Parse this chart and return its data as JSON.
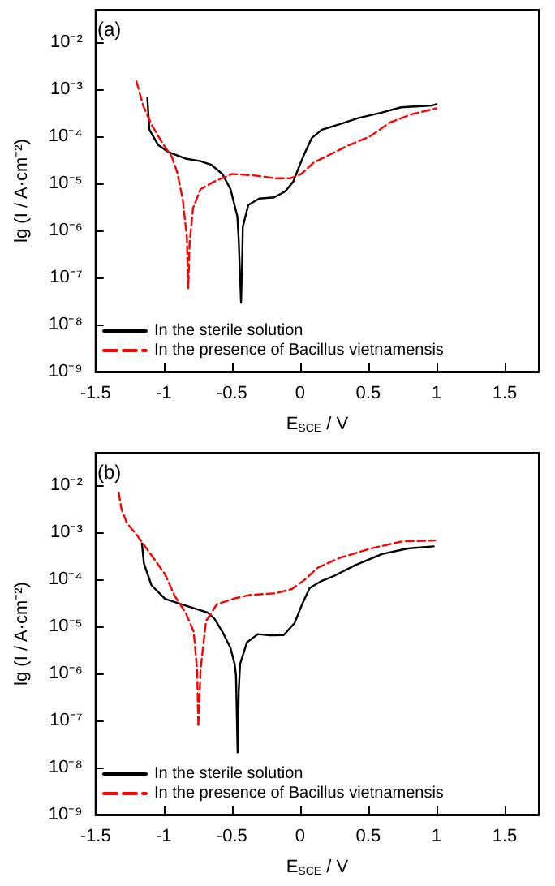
{
  "chart_data": [
    {
      "type": "line",
      "annotations": [
        "(a)"
      ],
      "xlabel": "E$_{SCE}$ / V",
      "ylabel": "lg (I / A·cm⁻²)",
      "xlim": [
        -1.5,
        1.75
      ],
      "xticks": [
        -1.5,
        -1.0,
        -0.5,
        0.0,
        0.5,
        1.0,
        1.5
      ],
      "ylim": [
        1e-09,
        0.05
      ],
      "yticks": [
        {
          "value": 1e-09,
          "label": "10⁻⁹"
        },
        {
          "value": 1e-08,
          "label": "10⁻⁸"
        },
        {
          "value": 1e-07,
          "label": "10⁻⁷"
        },
        {
          "value": 1e-06,
          "label": "10⁻⁶"
        },
        {
          "value": 1e-05,
          "label": "10⁻⁵"
        },
        {
          "value": 0.0001,
          "label": "10⁻⁴"
        },
        {
          "value": 0.001,
          "label": "10⁻³"
        },
        {
          "value": 0.01,
          "label": "10⁻²"
        }
      ],
      "log": "y",
      "grid": false,
      "legend": "bottom left",
      "series": [
        {
          "name": "In the sterile solution",
          "color": "#000000",
          "line_style": "solid",
          "x": [
            -1.12,
            -1.105,
            -1.04,
            -0.96,
            -0.84,
            -0.73,
            -0.65,
            -0.57,
            -0.51,
            -0.46,
            -0.45,
            -0.433,
            -0.425,
            -0.42,
            -0.38,
            -0.3,
            -0.19,
            -0.11,
            -0.05,
            -0.01,
            0.03,
            0.085,
            0.16,
            0.28,
            0.43,
            0.59,
            0.74,
            0.97,
            1.0
          ],
          "values": [
            0.00066,
            0.00014,
            6.6e-05,
            4.6e-05,
            3.4e-05,
            3e-05,
            2.5e-05,
            1.6e-05,
            7.6e-06,
            2e-06,
            6.3e-07,
            2.9e-08,
            2e-07,
            1.2e-06,
            3.5e-06,
            4.8e-06,
            5.1e-06,
            6.8e-06,
            1.1e-05,
            2.2e-05,
            4.2e-05,
            9.3e-05,
            0.00014,
            0.00018,
            0.00025,
            0.00032,
            0.00042,
            0.00046,
            0.00049
          ]
        },
        {
          "name": "In the presence of Bacillus vietnamensis",
          "color": "#ff0000",
          "line_style": "dashed",
          "x": [
            -1.2,
            -1.15,
            -1.09,
            -1.0,
            -0.94,
            -0.9,
            -0.86,
            -0.83,
            -0.82,
            -0.81,
            -0.785,
            -0.73,
            -0.63,
            -0.5,
            -0.34,
            -0.19,
            -0.07,
            0.01,
            0.1,
            0.2,
            0.36,
            0.51,
            0.66,
            0.82,
            1.0
          ],
          "values": [
            0.0015,
            0.00045,
            0.00018,
            6.6e-05,
            3.7e-05,
            1.7e-05,
            4.5e-06,
            7.1e-07,
            5.9e-08,
            5.4e-07,
            3e-06,
            7.6e-06,
            1.1e-05,
            1.6e-05,
            1.5e-05,
            1.3e-05,
            1.3e-05,
            1.6e-05,
            2.8e-05,
            3.9e-05,
            6.6e-05,
            0.0001,
            0.0002,
            0.0003,
            0.0004
          ]
        }
      ]
    },
    {
      "type": "line",
      "annotations": [
        "(b)"
      ],
      "xlabel": "E$_{SCE}$ / V",
      "ylabel": "lg (I / A·cm⁻²)",
      "xlim": [
        -1.5,
        1.75
      ],
      "xticks": [
        -1.5,
        -1.0,
        -0.5,
        0.0,
        0.5,
        1.0,
        1.5
      ],
      "ylim": [
        1e-09,
        0.05
      ],
      "yticks": [
        {
          "value": 1e-09,
          "label": "10⁻⁹"
        },
        {
          "value": 1e-08,
          "label": "10⁻⁸"
        },
        {
          "value": 1e-07,
          "label": "10⁻⁷"
        },
        {
          "value": 1e-06,
          "label": "10⁻⁶"
        },
        {
          "value": 1e-05,
          "label": "10⁻⁵"
        },
        {
          "value": 0.0001,
          "label": "10⁻⁴"
        },
        {
          "value": 0.001,
          "label": "10⁻³"
        },
        {
          "value": 0.01,
          "label": "10⁻²"
        }
      ],
      "log": "y",
      "grid": false,
      "legend": "bottom left",
      "series": [
        {
          "name": "In the sterile solution",
          "color": "#000000",
          "line_style": "solid",
          "x": [
            -1.16,
            -1.145,
            -1.09,
            -0.99,
            -0.84,
            -0.68,
            -0.63,
            -0.57,
            -0.51,
            -0.48,
            -0.47,
            -0.458,
            -0.45,
            -0.44,
            -0.39,
            -0.31,
            -0.22,
            -0.12,
            -0.04,
            0.015,
            0.07,
            0.15,
            0.25,
            0.4,
            0.6,
            0.79,
            0.98
          ],
          "values": [
            0.00059,
            0.00022,
            7.6e-05,
            3.9e-05,
            2.8e-05,
            2e-05,
            1.5e-05,
            7.8e-06,
            3.5e-06,
            1.6e-06,
            9.3e-07,
            2.1e-08,
            4.2e-07,
            1.6e-06,
            4.6e-06,
            6.9e-06,
            6.5e-06,
            6.6e-06,
            1.2e-05,
            3e-05,
            6.6e-05,
            9.1e-05,
            0.00012,
            0.0002,
            0.00035,
            0.00046,
            0.00051
          ]
        },
        {
          "name": "In the presence of Bacillus vietnamensis",
          "color": "#ff0000",
          "line_style": "dashed",
          "x": [
            -1.33,
            -1.31,
            -1.27,
            -1.19,
            -1.09,
            -0.99,
            -0.92,
            -0.84,
            -0.78,
            -0.755,
            -0.746,
            -0.73,
            -0.69,
            -0.61,
            -0.49,
            -0.37,
            -0.18,
            -0.06,
            0.035,
            0.13,
            0.29,
            0.52,
            0.75,
            0.99
          ],
          "values": [
            0.0071,
            0.0032,
            0.0016,
            0.00083,
            0.00033,
            0.00013,
            4.5e-05,
            2e-05,
            7.8e-06,
            1.2e-06,
            7.4e-08,
            1.2e-06,
            1.3e-05,
            3e-05,
            3.9e-05,
            4.7e-05,
            5.1e-05,
            6.3e-05,
            0.0001,
            0.00018,
            0.00029,
            0.00046,
            0.00065,
            0.00068
          ]
        }
      ]
    }
  ]
}
